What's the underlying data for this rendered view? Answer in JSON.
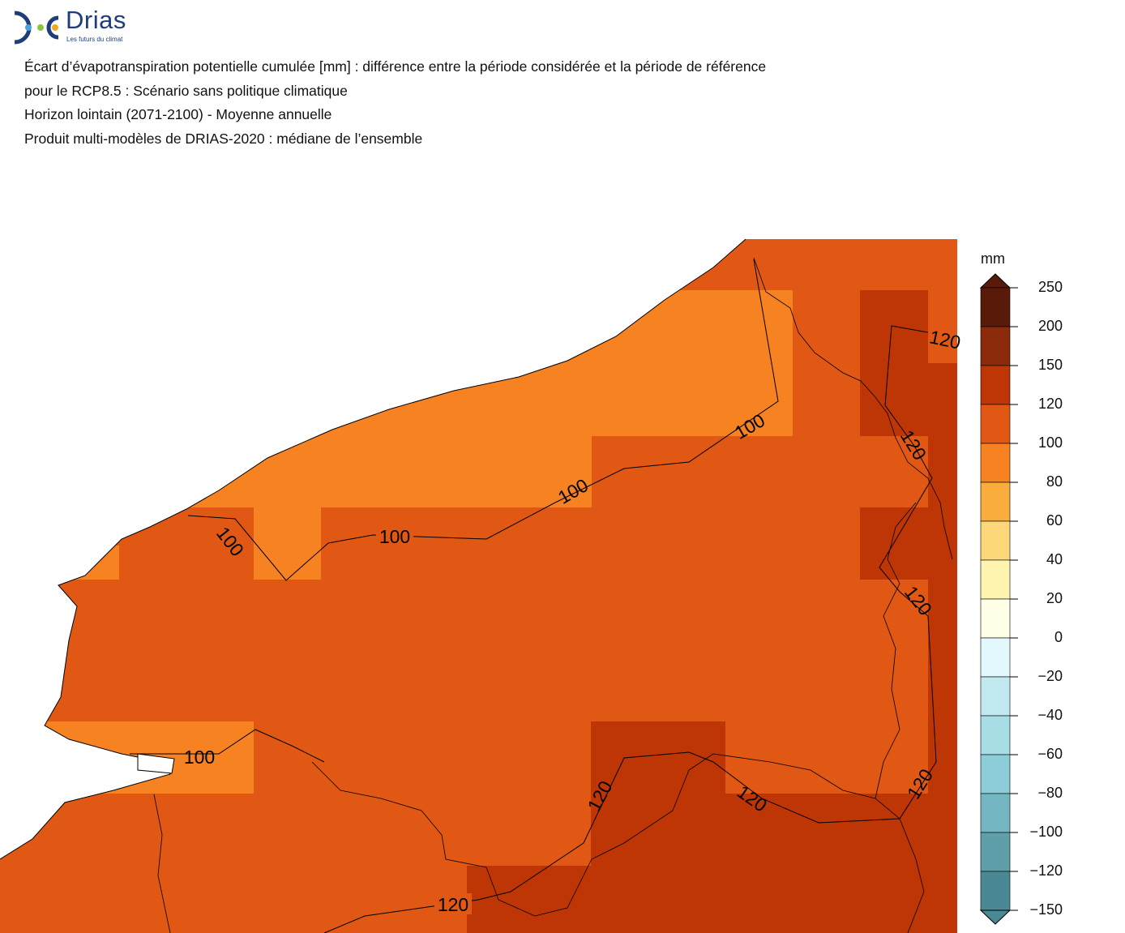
{
  "logo": {
    "name": "Drias",
    "tagline": "Les futurs du climat"
  },
  "title": {
    "line1": "Écart d’évapotranspiration potentielle cumulée [mm] : différence entre la période considérée et la période de référence",
    "line2": "pour le RCP8.5 : Scénario sans politique climatique",
    "line3": "Horizon lointain (2071-2100) - Moyenne annuelle",
    "line4": "Produit multi-modèles de DRIAS-2020 : médiane de l’ensemble"
  },
  "legend": {
    "unit": "mm",
    "ticks": [
      "250",
      "200",
      "150",
      "120",
      "100",
      "80",
      "60",
      "40",
      "20",
      "0",
      "−20",
      "−40",
      "−60",
      "−80",
      "−100",
      "−120",
      "−150"
    ],
    "colors": [
      "#5a1a0a",
      "#8c2a0c",
      "#be3605",
      "#e05814",
      "#f78222",
      "#f9ad3c",
      "#fdd87a",
      "#fff4b0",
      "#fffee6",
      "#e3f8fc",
      "#c2e8f0",
      "#a8dde6",
      "#8dcdd8",
      "#74b6c2",
      "#5e9faa",
      "#4a8893"
    ]
  },
  "colors": {
    "c80_100": "#f78222",
    "c100_120": "#e05814",
    "c120_150": "#be3605",
    "outline": "#000000",
    "sea": "#ffffff"
  },
  "contours": {
    "labels": [
      "100",
      "100",
      "100",
      "100",
      "100",
      "120",
      "120",
      "120",
      "120",
      "120",
      "120",
      "120"
    ]
  }
}
